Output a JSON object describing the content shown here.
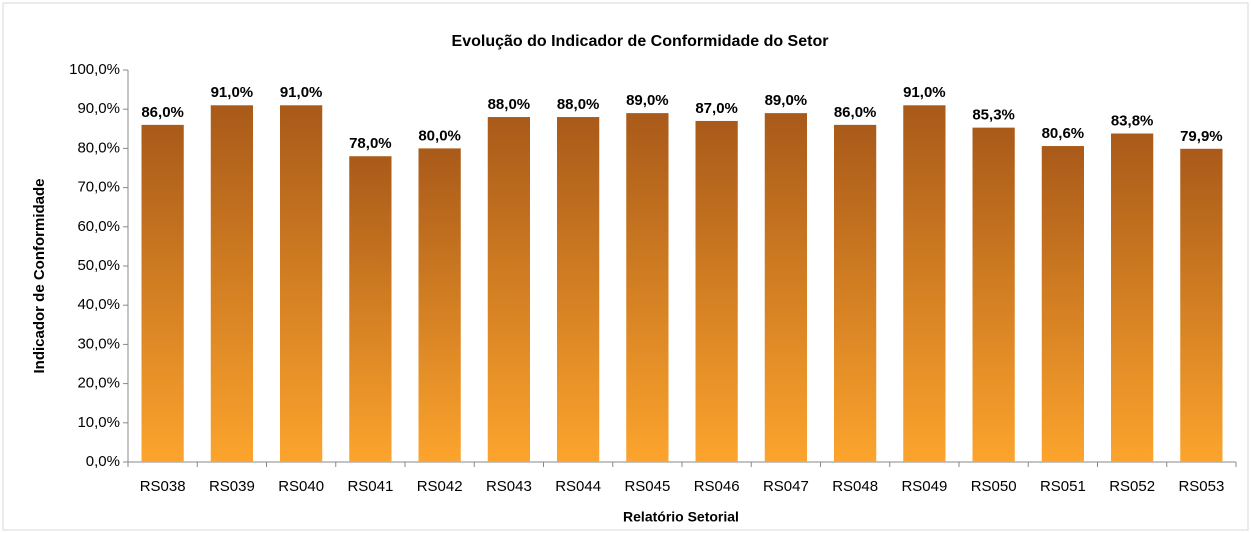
{
  "chart_data": {
    "type": "bar",
    "title": "Evolução do Indicador de Conformidade do Setor",
    "x_label": "Relatório Setorial",
    "y_label": "Indicador de Conformidade",
    "categories": [
      "RS038",
      "RS039",
      "RS040",
      "RS041",
      "RS042",
      "RS043",
      "RS044",
      "RS045",
      "RS046",
      "RS047",
      "RS048",
      "RS049",
      "RS050",
      "RS051",
      "RS052",
      "RS053"
    ],
    "values": [
      86.0,
      91.0,
      91.0,
      78.0,
      80.0,
      88.0,
      88.0,
      89.0,
      87.0,
      89.0,
      86.0,
      91.0,
      85.3,
      80.6,
      83.8,
      79.9
    ],
    "value_labels": [
      "86,0%",
      "91,0%",
      "91,0%",
      "78,0%",
      "80,0%",
      "88,0%",
      "88,0%",
      "89,0%",
      "87,0%",
      "89,0%",
      "86,0%",
      "91,0%",
      "85,3%",
      "80,6%",
      "83,8%",
      "79,9%"
    ],
    "color": {
      "top": "#a95a19",
      "bottom": "#fca42d"
    },
    "ylim": [
      0,
      100
    ],
    "yticks": [
      {
        "value": 0,
        "label": "0,0%"
      },
      {
        "value": 10,
        "label": "10,0%"
      },
      {
        "value": 20,
        "label": "20,0%"
      },
      {
        "value": 30,
        "label": "30,0%"
      },
      {
        "value": 40,
        "label": "40,0%"
      },
      {
        "value": 50,
        "label": "50,0%"
      },
      {
        "value": 60,
        "label": "60,0%"
      },
      {
        "value": 70,
        "label": "70,0%"
      },
      {
        "value": 80,
        "label": "80,0%"
      },
      {
        "value": 90,
        "label": "90,0%"
      },
      {
        "value": 100,
        "label": "100,0%"
      }
    ],
    "grid": false
  }
}
